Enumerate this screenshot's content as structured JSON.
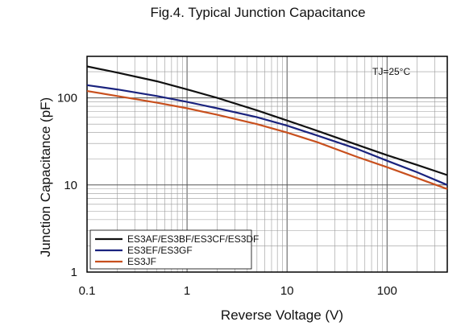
{
  "chart_data": {
    "type": "line",
    "title": "Fig.4. Typical Junction Capacitance",
    "xlabel": "Reverse Voltage (V)",
    "ylabel": "Junction Capacitance (pF)",
    "xscale": "log",
    "yscale": "log",
    "xlim": [
      0.1,
      400
    ],
    "ylim": [
      1,
      300
    ],
    "x_ticks": [
      "0.1",
      "1",
      "10",
      "100"
    ],
    "y_ticks": [
      "1",
      "10",
      "100"
    ],
    "grid": true,
    "legend_position": "bottom-left",
    "annotation": "TJ=25°C",
    "series": [
      {
        "name": "ES3AF/ES3BF/ES3CF/ES3DF",
        "color": "#111111",
        "x": [
          0.1,
          0.2,
          0.5,
          1,
          2,
          5,
          10,
          20,
          50,
          100,
          200,
          400
        ],
        "y": [
          230,
          195,
          155,
          125,
          100,
          72,
          55,
          42,
          29,
          22,
          17,
          13
        ]
      },
      {
        "name": "ES3EF/ES3GF",
        "color": "#1a237e",
        "x": [
          0.1,
          0.2,
          0.5,
          1,
          2,
          5,
          10,
          20,
          50,
          100,
          200,
          400
        ],
        "y": [
          140,
          125,
          105,
          90,
          76,
          60,
          48,
          37,
          26,
          19,
          14,
          10
        ]
      },
      {
        "name": "ES3JF",
        "color": "#c8501e",
        "x": [
          0.1,
          0.2,
          0.5,
          1,
          2,
          5,
          10,
          20,
          50,
          100,
          200,
          400
        ],
        "y": [
          120,
          105,
          88,
          76,
          64,
          50,
          40,
          31,
          21,
          16,
          12,
          9
        ]
      }
    ]
  }
}
